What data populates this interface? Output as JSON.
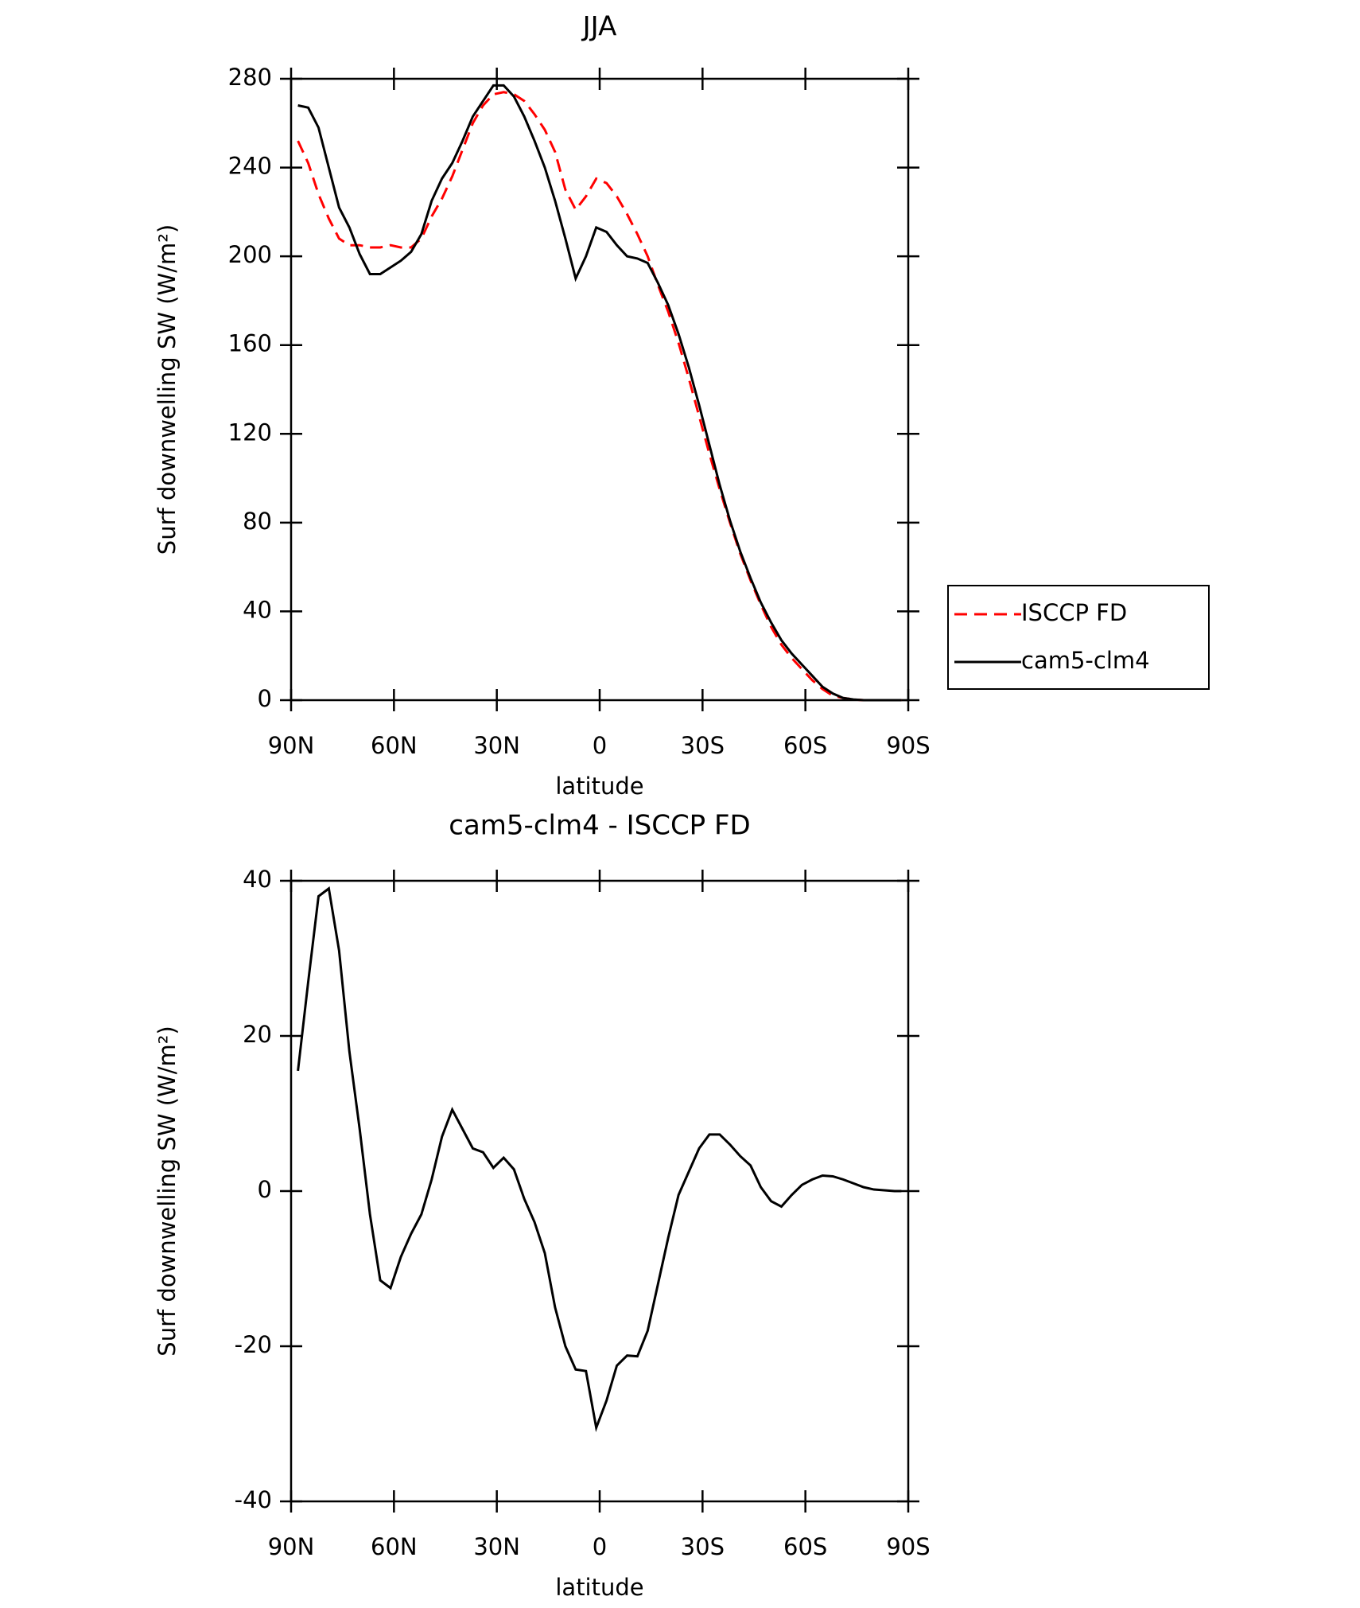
{
  "chart_data": [
    {
      "type": "line",
      "title": "JJA",
      "xlabel": "latitude",
      "ylabel": "Surf downwelling SW (W/m²)",
      "x": [
        88,
        85,
        82,
        79,
        76,
        73,
        70,
        67,
        64,
        61,
        58,
        55,
        52,
        49,
        46,
        43,
        40,
        37,
        34,
        31,
        28,
        25,
        22,
        19,
        16,
        13,
        10,
        7,
        4,
        1,
        -2,
        -5,
        -8,
        -11,
        -14,
        -17,
        -20,
        -23,
        -26,
        -29,
        -32,
        -35,
        -38,
        -41,
        -44,
        -47,
        -50,
        -53,
        -56,
        -59,
        -62,
        -65,
        -68,
        -71,
        -74,
        -77,
        -80,
        -83,
        -86,
        -88
      ],
      "series": [
        {
          "name": "ISCCP FD",
          "color": "#ff0000",
          "dashed": true,
          "values": [
            252,
            242,
            228,
            217,
            208,
            205,
            205,
            204,
            204,
            205,
            204,
            204,
            208,
            218,
            226,
            236,
            248,
            260,
            268,
            273,
            274,
            273,
            270,
            264,
            257,
            247,
            230,
            221,
            227,
            235,
            233,
            227,
            219,
            210,
            200,
            187,
            175,
            161,
            145,
            128,
            111,
            95,
            80,
            66,
            54,
            43,
            33,
            25,
            19,
            14,
            9,
            5,
            2,
            1,
            0.3,
            0,
            0,
            0,
            0,
            0
          ]
        },
        {
          "name": "cam5-clm4",
          "color": "#000000",
          "dashed": false,
          "values": [
            268,
            267,
            258,
            240,
            222,
            213,
            201,
            192,
            192,
            195,
            198,
            202,
            210,
            225,
            235,
            242,
            252,
            263,
            270,
            277,
            277,
            272,
            263,
            252,
            240,
            225,
            208,
            190,
            200,
            213,
            211,
            205,
            200,
            199,
            197,
            188,
            178,
            165,
            150,
            133,
            115,
            97,
            81,
            67,
            55,
            44,
            35,
            27,
            21,
            16,
            11,
            6,
            3,
            1,
            0.3,
            0,
            0,
            0,
            0,
            0
          ]
        }
      ],
      "xlim": [
        90,
        -90
      ],
      "xticks": [
        {
          "value": 90,
          "label": "90N"
        },
        {
          "value": 60,
          "label": "60N"
        },
        {
          "value": 30,
          "label": "30N"
        },
        0,
        {
          "value": -30,
          "label": "30S"
        },
        {
          "value": -60,
          "label": "60S"
        },
        {
          "value": -90,
          "label": "90S"
        }
      ],
      "ylim": [
        0,
        280
      ],
      "yticks": [
        0,
        40,
        80,
        120,
        160,
        200,
        240,
        280
      ],
      "legend": "right"
    },
    {
      "type": "line",
      "title": "cam5-clm4 - ISCCP FD",
      "xlabel": "latitude",
      "ylabel": "Surf downwelling SW (W/m²)",
      "x": [
        88,
        85,
        82,
        79,
        76,
        73,
        70,
        67,
        64,
        61,
        58,
        55,
        52,
        49,
        46,
        43,
        40,
        37,
        34,
        31,
        28,
        25,
        22,
        19,
        16,
        13,
        10,
        7,
        4,
        1,
        -2,
        -5,
        -8,
        -11,
        -14,
        -17,
        -20,
        -23,
        -26,
        -29,
        -32,
        -35,
        -38,
        -41,
        -44,
        -47,
        -50,
        -53,
        -56,
        -59,
        -62,
        -65,
        -68,
        -71,
        -74,
        -77,
        -80,
        -83,
        -86,
        -88
      ],
      "color": "#000000",
      "values": [
        15.5,
        27,
        38,
        39,
        31,
        18,
        8,
        -3,
        -11.5,
        -12.5,
        -8.5,
        -5.5,
        -3,
        1.5,
        7,
        10.5,
        8,
        5.5,
        5,
        3,
        4.3,
        2.8,
        -1,
        -4,
        -8,
        -15,
        -20,
        -23,
        -23.2,
        -30.5,
        -27,
        -22.5,
        -21.2,
        -21.3,
        -18,
        -12,
        -6,
        -0.5,
        2.5,
        5.5,
        7.3,
        7.3,
        6,
        4.5,
        3.3,
        0.5,
        -1.3,
        -2,
        -0.5,
        0.8,
        1.5,
        2,
        1.9,
        1.5,
        1,
        0.5,
        0.2,
        0.1,
        0,
        0
      ],
      "xlim": [
        90,
        -90
      ],
      "xticks": [
        {
          "value": 90,
          "label": "90N"
        },
        {
          "value": 60,
          "label": "60N"
        },
        {
          "value": 30,
          "label": "30N"
        },
        0,
        {
          "value": -30,
          "label": "30S"
        },
        {
          "value": -60,
          "label": "60S"
        },
        {
          "value": -90,
          "label": "90S"
        }
      ],
      "ylim": [
        -40,
        40
      ],
      "yticks": [
        -40,
        -20,
        0,
        20,
        40
      ]
    }
  ]
}
